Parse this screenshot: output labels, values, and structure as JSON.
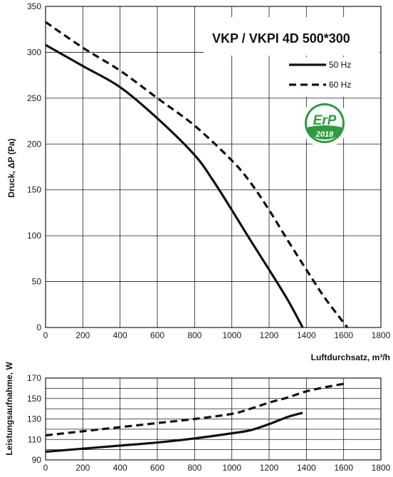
{
  "chart_data": [
    {
      "type": "line",
      "title": "VKP / VKPI 4D 500*300",
      "xlabel": "Luftdurchsatz, m³/h",
      "ylabel": "Druck, ΔP (Pa)",
      "xlim": [
        0,
        1800
      ],
      "ylim": [
        0,
        350
      ],
      "x_ticks": [
        "0",
        "200",
        "400",
        "600",
        "800",
        "1000",
        "1200",
        "1400",
        "1600",
        "1800"
      ],
      "y_ticks": [
        "0",
        "50",
        "100",
        "150",
        "200",
        "250",
        "300",
        "350"
      ],
      "grid": true,
      "legend_position": "top-right",
      "badge": {
        "text": "ErP",
        "year": "2018",
        "color": "#2e9b3e"
      },
      "series": [
        {
          "name": "50 Hz",
          "style": "solid",
          "x": [
            0,
            200,
            400,
            600,
            800,
            900,
            1000,
            1100,
            1200,
            1300,
            1380
          ],
          "y": [
            308,
            285,
            262,
            228,
            188,
            160,
            128,
            95,
            63,
            30,
            0
          ]
        },
        {
          "name": "60 Hz",
          "style": "dashed",
          "x": [
            0,
            200,
            400,
            600,
            800,
            1000,
            1100,
            1200,
            1300,
            1400,
            1500,
            1620
          ],
          "y": [
            333,
            305,
            280,
            250,
            220,
            182,
            158,
            128,
            95,
            63,
            32,
            0
          ]
        }
      ]
    },
    {
      "type": "line",
      "xlabel": "",
      "ylabel": "Leistungsaufnahme, W",
      "xlim": [
        0,
        1800
      ],
      "ylim": [
        90,
        170
      ],
      "x_ticks": [
        "0",
        "200",
        "400",
        "600",
        "800",
        "1000",
        "1200",
        "1400",
        "1600",
        "1800"
      ],
      "y_ticks": [
        "90",
        "110",
        "130",
        "150",
        "170"
      ],
      "grid": true,
      "series": [
        {
          "style": "solid",
          "x": [
            0,
            200,
            400,
            600,
            800,
            1000,
            1100,
            1200,
            1300,
            1380
          ],
          "y": [
            98,
            101,
            104,
            107,
            111,
            116,
            119,
            125,
            132,
            136
          ]
        },
        {
          "style": "dashed",
          "x": [
            0,
            200,
            400,
            600,
            800,
            1000,
            1100,
            1200,
            1300,
            1400,
            1500,
            1620
          ],
          "y": [
            114,
            118,
            122,
            126,
            130,
            135,
            140,
            146,
            151,
            157,
            161,
            165
          ]
        }
      ]
    }
  ]
}
